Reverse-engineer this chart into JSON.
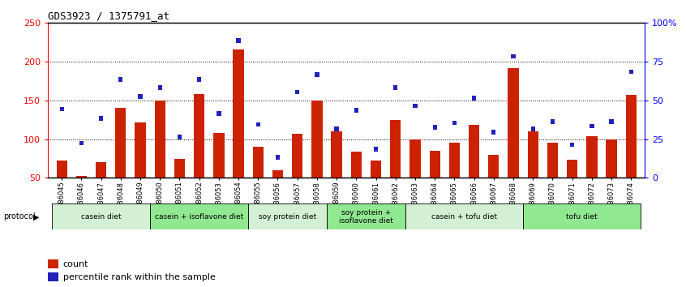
{
  "title": "GDS3923 / 1375791_at",
  "samples": [
    "GSM586045",
    "GSM586046",
    "GSM586047",
    "GSM586048",
    "GSM586049",
    "GSM586050",
    "GSM586051",
    "GSM586052",
    "GSM586053",
    "GSM586054",
    "GSM586055",
    "GSM586056",
    "GSM586057",
    "GSM586058",
    "GSM586059",
    "GSM586060",
    "GSM586061",
    "GSM586062",
    "GSM586063",
    "GSM586064",
    "GSM586065",
    "GSM586066",
    "GSM586067",
    "GSM586068",
    "GSM586069",
    "GSM586070",
    "GSM586071",
    "GSM586072",
    "GSM586073",
    "GSM586074"
  ],
  "counts": [
    72,
    53,
    70,
    140,
    122,
    150,
    75,
    158,
    108,
    216,
    90,
    60,
    107,
    150,
    110,
    84,
    72,
    125,
    100,
    85,
    95,
    118,
    80,
    192,
    110,
    95,
    73,
    104,
    100,
    157
  ],
  "percentile_ranks_pct": [
    46,
    24,
    40,
    65,
    54,
    60,
    28,
    65,
    43,
    90,
    36,
    15,
    57,
    68,
    33,
    45,
    20,
    60,
    48,
    34,
    37,
    53,
    31,
    80,
    33,
    38,
    23,
    35,
    38,
    70
  ],
  "protocols": [
    {
      "label": "casein diet",
      "start": 0,
      "end": 4,
      "color": "#d4f0d4"
    },
    {
      "label": "casein + isoflavone diet",
      "start": 5,
      "end": 9,
      "color": "#90e890"
    },
    {
      "label": "soy protein diet",
      "start": 10,
      "end": 13,
      "color": "#d4f0d4"
    },
    {
      "label": "soy protein +\nisoflavone diet",
      "start": 14,
      "end": 17,
      "color": "#90e890"
    },
    {
      "label": "casein + tofu diet",
      "start": 18,
      "end": 23,
      "color": "#d4f0d4"
    },
    {
      "label": "tofu diet",
      "start": 24,
      "end": 29,
      "color": "#90e890"
    }
  ],
  "bar_color": "#cc2200",
  "blue_bar_color": "#2222bb",
  "ylim_left": [
    50,
    250
  ],
  "left_yticks": [
    50,
    100,
    150,
    200,
    250
  ],
  "right_yticks": [
    0,
    25,
    50,
    75,
    100
  ],
  "right_yticklabels": [
    "0",
    "25",
    "50",
    "75",
    "100%"
  ],
  "grid_values": [
    100,
    150,
    200
  ],
  "bar_width": 0.55
}
